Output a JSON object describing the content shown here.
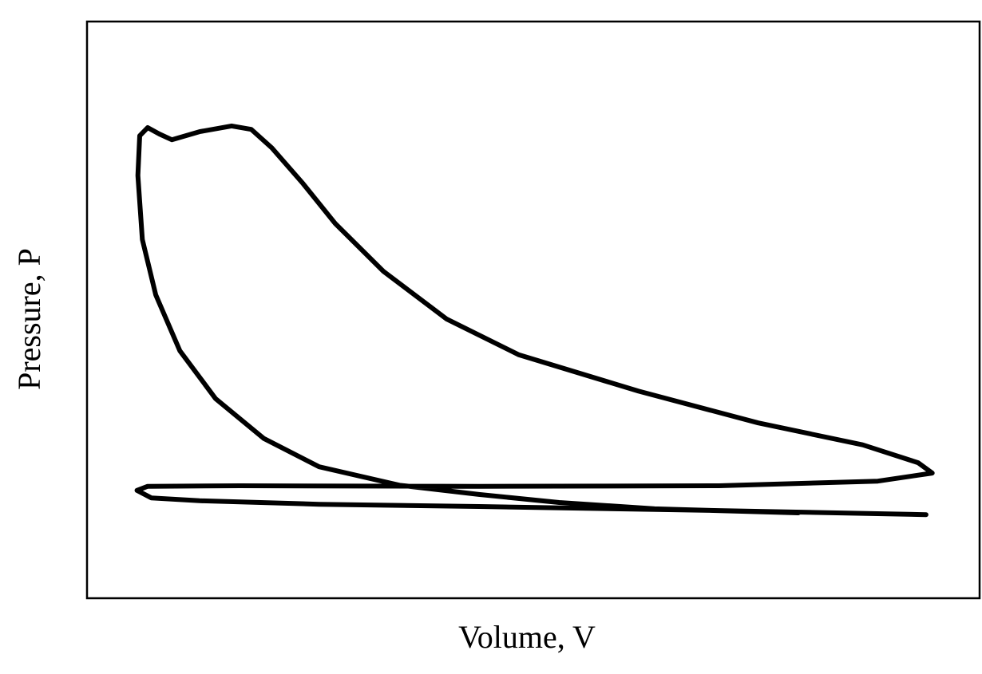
{
  "chart_data": {
    "type": "line",
    "x_label": "Volume, V",
    "y_label": "Pressure, P",
    "xlim": [
      0,
      100
    ],
    "ylim": [
      0,
      100
    ],
    "series": [
      {
        "color": "#000000",
        "x": [
          94.0,
          70.8,
          43.9,
          26.0,
          12.6,
          7.2,
          5.6,
          6.8,
          17.1,
          43.9,
          70.8,
          88.6,
          94.7,
          93.1,
          86.9,
          75.2,
          61.8,
          48.4,
          40.3,
          33.2,
          27.8,
          24.2,
          20.7,
          18.4,
          16.2,
          12.6,
          9.5,
          8.1,
          6.8,
          5.9,
          5.7,
          6.2,
          7.7,
          10.4,
          14.4,
          19.8,
          26.0,
          35.0,
          43.9,
          52.9,
          63.6,
          79.7
        ],
        "values": [
          14.5,
          15.2,
          15.9,
          16.3,
          16.9,
          17.4,
          18.7,
          19.4,
          19.5,
          19.4,
          19.5,
          20.3,
          21.7,
          23.5,
          26.6,
          30.4,
          35.9,
          42.2,
          48.4,
          56.7,
          65.0,
          71.9,
          78.1,
          81.3,
          81.9,
          80.9,
          79.5,
          80.5,
          81.6,
          80.2,
          73.3,
          62.2,
          52.6,
          42.9,
          34.6,
          27.7,
          22.8,
          19.6,
          18.0,
          16.6,
          15.5,
          14.8
        ]
      }
    ]
  }
}
